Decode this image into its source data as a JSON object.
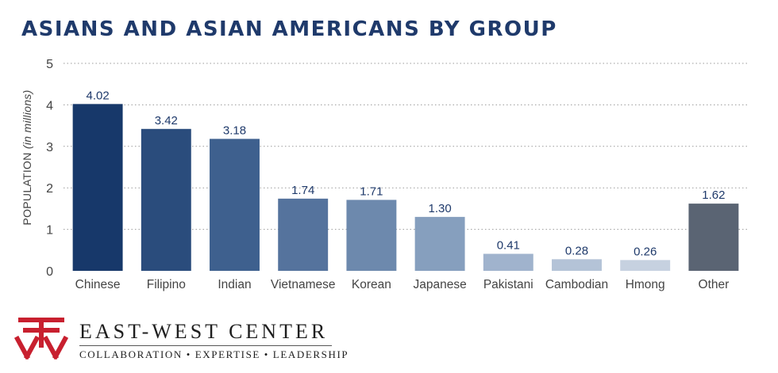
{
  "chart_data": {
    "type": "bar",
    "title": "ASIANS AND ASIAN AMERICANS BY GROUP",
    "ylabel": "POPULATION",
    "ylabel_unit": "(in millions)",
    "xlabel": "",
    "categories": [
      "Chinese",
      "Filipino",
      "Indian",
      "Vietnamese",
      "Korean",
      "Japanese",
      "Pakistani",
      "Cambodian",
      "Hmong",
      "Other"
    ],
    "values": [
      4.02,
      3.42,
      3.18,
      1.74,
      1.71,
      1.3,
      0.41,
      0.28,
      0.26,
      1.62
    ],
    "value_labels": [
      "4.02",
      "3.42",
      "3.18",
      "1.74",
      "1.71",
      "1.30",
      "0.41",
      "0.28",
      "0.26",
      "1.62"
    ],
    "bar_colors": [
      "#17386a",
      "#2a4c7c",
      "#3e608e",
      "#55739d",
      "#6d89ad",
      "#869fbe",
      "#a0b3cd",
      "#b4c3d7",
      "#c6d1e0",
      "#5a6473"
    ],
    "yticks": [
      "0",
      "1",
      "2",
      "3",
      "4",
      "5"
    ],
    "ylim": [
      0,
      5
    ],
    "grid": true,
    "legend": "none"
  },
  "logo": {
    "name": "EAST-WEST CENTER",
    "tagline": "COLLABORATION • EXPERTISE • LEADERSHIP",
    "mark_color": "#c8202f"
  },
  "colors": {
    "title": "#1f3a6b",
    "value_label": "#1f3a6b",
    "axis_text": "#444444",
    "grid": "#9a9a9a"
  }
}
